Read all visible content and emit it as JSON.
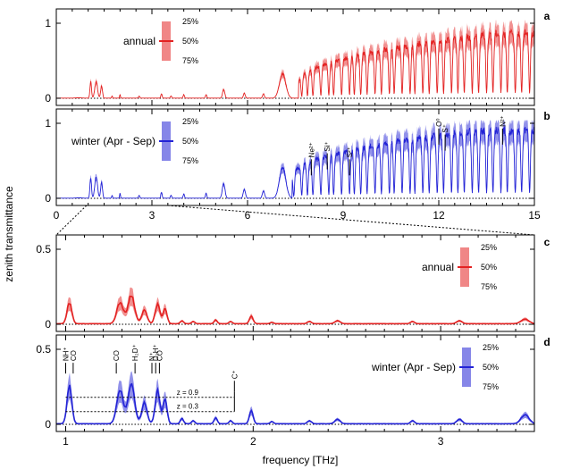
{
  "ylabel": "zenith transmittance",
  "xlabel": "frequency [THz]",
  "chart_data": [
    {
      "id": "a",
      "type": "area",
      "panel_label": "a",
      "color": "#e32222",
      "xlim": [
        0,
        15
      ],
      "ylim": [
        0,
        1
      ],
      "yticks": [
        0,
        1
      ],
      "xticks": [],
      "legend": {
        "title": "annual",
        "levels": [
          "25%",
          "50%",
          "75%"
        ],
        "position": "top-left"
      },
      "zero_line": "dotted",
      "bands": [
        {
          "x": 0.7,
          "amp": 0.006,
          "w": 0.2
        },
        {
          "x": 1.08,
          "amp": 0.22,
          "w": 0.035
        },
        {
          "x": 1.25,
          "amp": 0.23,
          "w": 0.06
        },
        {
          "x": 1.42,
          "amp": 0.17,
          "w": 0.04
        },
        {
          "x": 1.75,
          "amp": 0.03,
          "w": 0.02
        },
        {
          "x": 2.0,
          "amp": 0.05,
          "w": 0.02
        },
        {
          "x": 2.6,
          "amp": 0.03,
          "w": 0.03
        },
        {
          "x": 3.3,
          "amp": 0.06,
          "w": 0.03
        },
        {
          "x": 3.6,
          "amp": 0.03,
          "w": 0.03
        },
        {
          "x": 4.0,
          "amp": 0.05,
          "w": 0.03
        },
        {
          "x": 4.7,
          "amp": 0.05,
          "w": 0.03
        },
        {
          "x": 5.25,
          "amp": 0.12,
          "w": 0.05
        },
        {
          "x": 5.9,
          "amp": 0.07,
          "w": 0.04
        },
        {
          "x": 6.5,
          "amp": 0.06,
          "w": 0.04
        },
        {
          "x": 7.1,
          "amp": 0.33,
          "w": 0.14
        }
      ],
      "ramp": {
        "x0": 7.6,
        "x1": 13.8,
        "ymin": 0.22,
        "ymax": 0.88
      },
      "dips": [
        7.45,
        7.7,
        7.88,
        8.05,
        8.3,
        8.55,
        8.7,
        8.95,
        9.2,
        9.35,
        9.55,
        9.75,
        10.0,
        10.2,
        10.45,
        10.6,
        10.85,
        11.1,
        11.25,
        11.5,
        11.7,
        11.95,
        12.15,
        12.4,
        12.6,
        12.8,
        13.05,
        13.25,
        13.5,
        13.7,
        13.95,
        14.15,
        14.4,
        14.6,
        14.85
      ]
    },
    {
      "id": "b",
      "type": "area",
      "panel_label": "b",
      "color": "#2323d6",
      "xlim": [
        0,
        15
      ],
      "ylim": [
        0,
        1
      ],
      "yticks": [
        0,
        1
      ],
      "xticks": [
        0,
        3,
        6,
        9,
        12,
        15
      ],
      "legend": {
        "title": "winter (Apr - Sep)",
        "levels": [
          "25%",
          "50%",
          "75%"
        ],
        "position": "top-left"
      },
      "zero_line": "dotted",
      "bands": [
        {
          "x": 0.7,
          "amp": 0.006,
          "w": 0.2
        },
        {
          "x": 1.08,
          "amp": 0.28,
          "w": 0.035
        },
        {
          "x": 1.25,
          "amp": 0.3,
          "w": 0.06
        },
        {
          "x": 1.42,
          "amp": 0.22,
          "w": 0.04
        },
        {
          "x": 1.75,
          "amp": 0.04,
          "w": 0.02
        },
        {
          "x": 2.0,
          "amp": 0.07,
          "w": 0.02
        },
        {
          "x": 2.6,
          "amp": 0.04,
          "w": 0.03
        },
        {
          "x": 3.3,
          "amp": 0.08,
          "w": 0.03
        },
        {
          "x": 3.6,
          "amp": 0.04,
          "w": 0.03
        },
        {
          "x": 4.0,
          "amp": 0.06,
          "w": 0.03
        },
        {
          "x": 4.7,
          "amp": 0.07,
          "w": 0.03
        },
        {
          "x": 5.25,
          "amp": 0.2,
          "w": 0.06
        },
        {
          "x": 5.9,
          "amp": 0.12,
          "w": 0.05
        },
        {
          "x": 6.5,
          "amp": 0.1,
          "w": 0.05
        },
        {
          "x": 7.1,
          "amp": 0.42,
          "w": 0.14
        }
      ],
      "ramp": {
        "x0": 7.4,
        "x1": 13.2,
        "ymin": 0.3,
        "ymax": 0.92
      },
      "dips": [
        7.45,
        7.7,
        7.88,
        8.05,
        8.3,
        8.55,
        8.7,
        8.95,
        9.2,
        9.35,
        9.55,
        9.75,
        10.0,
        10.2,
        10.45,
        10.6,
        10.85,
        11.1,
        11.25,
        11.5,
        11.7,
        11.95,
        12.15,
        12.4,
        12.6,
        12.8,
        13.05,
        13.25,
        13.5,
        13.7,
        13.95,
        14.15,
        14.4,
        14.6,
        14.85
      ],
      "annotations": [
        {
          "label": "Ne²⁺",
          "x": 8.0
        },
        {
          "label": "Si⁺",
          "x": 8.5
        },
        {
          "label": "S²⁺",
          "x": 9.2
        },
        {
          "label": "O⁰",
          "x": 12.0
        },
        {
          "label": "S⁺",
          "x": 12.2
        },
        {
          "label": "N²⁺",
          "x": 14.0
        }
      ]
    },
    {
      "id": "c",
      "type": "area",
      "panel_label": "c",
      "color": "#e32222",
      "xlim": [
        0.95,
        3.5
      ],
      "ylim": [
        0,
        0.5
      ],
      "yticks": [
        0,
        0.5
      ],
      "xticks": [],
      "legend": {
        "title": "annual",
        "levels": [
          "25%",
          "50%",
          "75%"
        ],
        "position": "top-right"
      },
      "zero_line": "dotted",
      "peaks": [
        {
          "x": 1.02,
          "y": 0.14,
          "w": 0.018
        },
        {
          "x": 1.29,
          "y": 0.14,
          "w": 0.025
        },
        {
          "x": 1.35,
          "y": 0.19,
          "w": 0.025
        },
        {
          "x": 1.42,
          "y": 0.09,
          "w": 0.02
        },
        {
          "x": 1.49,
          "y": 0.13,
          "w": 0.018
        },
        {
          "x": 1.53,
          "y": 0.1,
          "w": 0.015
        },
        {
          "x": 1.62,
          "y": 0.02,
          "w": 0.012
        },
        {
          "x": 1.68,
          "y": 0.015,
          "w": 0.012
        },
        {
          "x": 1.8,
          "y": 0.025,
          "w": 0.012
        },
        {
          "x": 1.88,
          "y": 0.015,
          "w": 0.012
        },
        {
          "x": 1.99,
          "y": 0.05,
          "w": 0.014
        },
        {
          "x": 2.1,
          "y": 0.01,
          "w": 0.012
        },
        {
          "x": 2.3,
          "y": 0.015,
          "w": 0.015
        },
        {
          "x": 2.45,
          "y": 0.02,
          "w": 0.02
        },
        {
          "x": 2.85,
          "y": 0.015,
          "w": 0.015
        },
        {
          "x": 3.1,
          "y": 0.02,
          "w": 0.02
        },
        {
          "x": 3.45,
          "y": 0.03,
          "w": 0.03
        }
      ]
    },
    {
      "id": "d",
      "type": "area",
      "panel_label": "d",
      "color": "#2323d6",
      "xlim": [
        0.95,
        3.5
      ],
      "ylim": [
        0,
        0.5
      ],
      "yticks": [
        0,
        0.5
      ],
      "xticks": [
        1,
        2,
        3
      ],
      "legend": {
        "title": "winter (Apr - Sep)",
        "levels": [
          "25%",
          "50%",
          "75%"
        ],
        "position": "top-right"
      },
      "zero_line": "dotted",
      "peaks": [
        {
          "x": 1.02,
          "y": 0.25,
          "w": 0.018
        },
        {
          "x": 1.29,
          "y": 0.22,
          "w": 0.025
        },
        {
          "x": 1.35,
          "y": 0.26,
          "w": 0.025
        },
        {
          "x": 1.42,
          "y": 0.14,
          "w": 0.02
        },
        {
          "x": 1.49,
          "y": 0.22,
          "w": 0.018
        },
        {
          "x": 1.53,
          "y": 0.17,
          "w": 0.015
        },
        {
          "x": 1.62,
          "y": 0.035,
          "w": 0.012
        },
        {
          "x": 1.68,
          "y": 0.02,
          "w": 0.012
        },
        {
          "x": 1.8,
          "y": 0.04,
          "w": 0.012
        },
        {
          "x": 1.88,
          "y": 0.02,
          "w": 0.012
        },
        {
          "x": 1.99,
          "y": 0.09,
          "w": 0.014
        },
        {
          "x": 2.1,
          "y": 0.015,
          "w": 0.012
        },
        {
          "x": 2.3,
          "y": 0.02,
          "w": 0.015
        },
        {
          "x": 2.45,
          "y": 0.03,
          "w": 0.02
        },
        {
          "x": 2.85,
          "y": 0.02,
          "w": 0.015
        },
        {
          "x": 3.1,
          "y": 0.03,
          "w": 0.02
        },
        {
          "x": 3.45,
          "y": 0.06,
          "w": 0.03
        }
      ],
      "annotations": [
        {
          "label": "NH⁺",
          "x": 1.0
        },
        {
          "label": "CO",
          "x": 1.04
        },
        {
          "label": "CO",
          "x": 1.27
        },
        {
          "label": "H₂D⁺",
          "x": 1.37
        },
        {
          "label": "N⁺",
          "x": 1.46
        },
        {
          "label": "D₂H⁺",
          "x": 1.48
        },
        {
          "label": "CO",
          "x": 1.5
        },
        {
          "label": "C⁺",
          "x": 1.9
        }
      ],
      "z_lines": [
        {
          "label": "z = 0.9",
          "y": 0.18
        },
        {
          "label": "z = 0.3",
          "y": 0.085
        }
      ]
    }
  ]
}
